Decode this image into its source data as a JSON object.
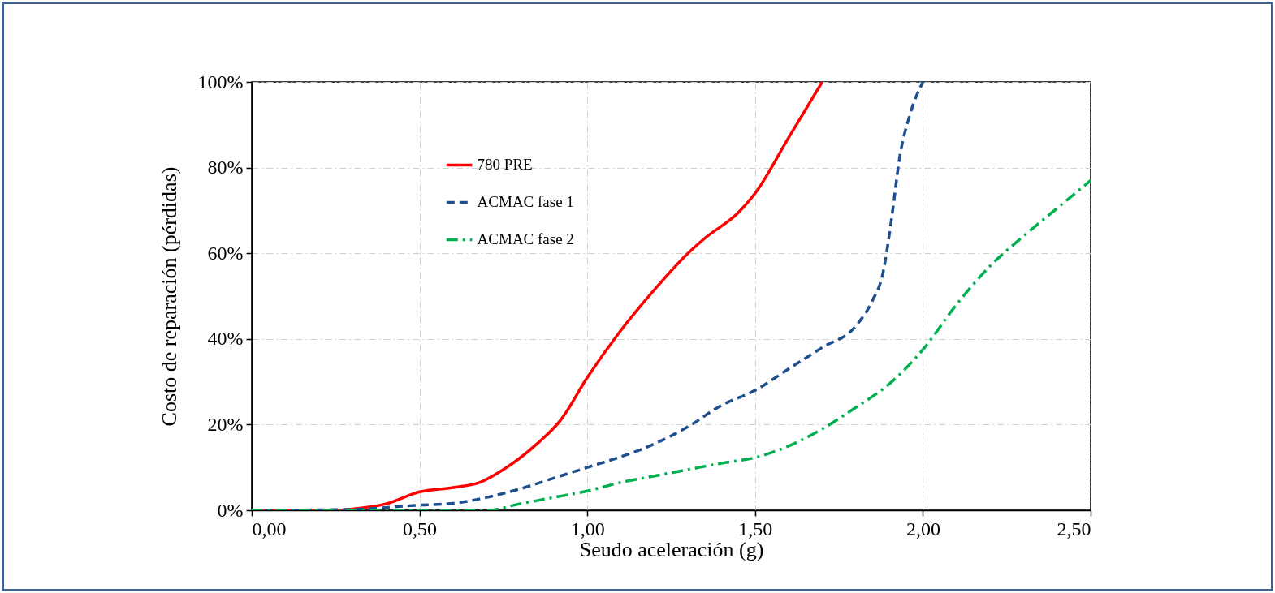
{
  "chart_data": {
    "type": "line",
    "xlabel": "Seudo aceleración (g)",
    "ylabel": "Costo de reparación (pérdidas)",
    "xlim": [
      0,
      2.5
    ],
    "xticks": [
      {
        "value": 0,
        "label": "0,00"
      },
      {
        "value": 0.5,
        "label": "0,50"
      },
      {
        "value": 1,
        "label": "1,00"
      },
      {
        "value": 1.5,
        "label": "1,50"
      },
      {
        "value": 2,
        "label": "2,00"
      },
      {
        "value": 2.5,
        "label": "2,50"
      }
    ],
    "ylim": [
      0,
      100
    ],
    "yticks": [
      {
        "value": 0,
        "label": "0%"
      },
      {
        "value": 20,
        "label": "20%"
      },
      {
        "value": 40,
        "label": "40%"
      },
      {
        "value": 60,
        "label": "60%"
      },
      {
        "value": 80,
        "label": "80%"
      },
      {
        "value": 100,
        "label": "100%"
      }
    ],
    "grid": true,
    "legend": "top left",
    "marker": "none",
    "series": [
      {
        "name": "780 PRE",
        "color": "#ff0000",
        "line_style": "solid",
        "x": [
          0,
          0.25,
          0.3,
          0.4,
          0.5,
          0.6,
          0.68,
          0.75,
          0.85,
          0.92,
          1.0,
          1.1,
          1.2,
          1.3,
          1.35,
          1.45,
          1.5,
          1.6,
          1.7
        ],
        "values": [
          0,
          0,
          0.3,
          1.5,
          4.3,
          5.3,
          6.5,
          9.5,
          15.5,
          21,
          31,
          42,
          51.5,
          60,
          63.5,
          69.5,
          74,
          87,
          100
        ]
      },
      {
        "name": "ACMAC fase 1",
        "color": "#1f4e8c",
        "line_style": "dashed",
        "x": [
          0,
          0.3,
          0.5,
          0.6,
          0.7,
          0.8,
          0.9,
          1.0,
          1.1,
          1.2,
          1.3,
          1.4,
          1.5,
          1.6,
          1.7,
          1.8,
          1.85,
          1.88,
          1.91,
          1.93,
          1.96,
          2.0
        ],
        "values": [
          0,
          0.2,
          1.2,
          1.6,
          3,
          5,
          7.5,
          10,
          12.5,
          15.5,
          19.5,
          24.5,
          28,
          33,
          38,
          43,
          49,
          55,
          70,
          82,
          92,
          100
        ]
      },
      {
        "name": "ACMAC fase 2",
        "color": "#00b050",
        "line_style": "dashdot",
        "x": [
          0,
          0.3,
          0.5,
          0.7,
          0.8,
          0.9,
          1.0,
          1.1,
          1.2,
          1.3,
          1.4,
          1.5,
          1.6,
          1.7,
          1.8,
          1.9,
          2.0,
          2.1,
          2.2,
          2.3,
          2.4,
          2.5
        ],
        "values": [
          0,
          0,
          0,
          0,
          1.5,
          3,
          4.5,
          6.5,
          8,
          9.5,
          11,
          12.3,
          15,
          19,
          24,
          29.5,
          37.5,
          48,
          57,
          64,
          70.5,
          77
        ]
      }
    ]
  }
}
